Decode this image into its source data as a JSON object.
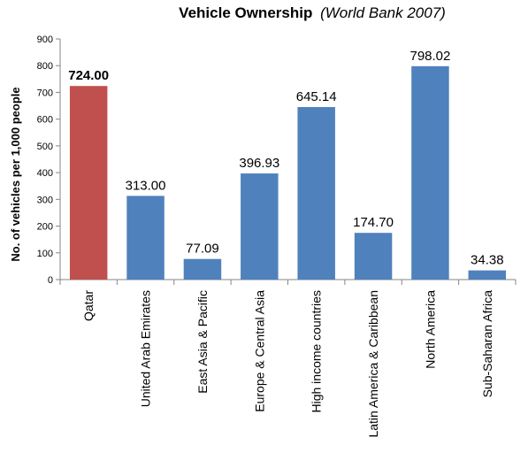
{
  "chart_data": {
    "type": "bar",
    "title": "Vehicle Ownership",
    "subtitle": "(World Bank 2007)",
    "xlabel": "",
    "ylabel": "No. of vehicles per 1,000 people",
    "ylim": [
      0,
      900
    ],
    "yticks": [
      0,
      100,
      200,
      300,
      400,
      500,
      600,
      700,
      800,
      900
    ],
    "grid": false,
    "legend": "none",
    "categories": [
      "Qatar",
      "United Arab Emirates",
      "East Asia & Pacific",
      "Europe & Central Asia",
      "High income countries",
      "Latin America & Caribbean",
      "North America",
      "Sub-Saharan Africa"
    ],
    "values": [
      724.0,
      313.0,
      77.09,
      396.93,
      645.14,
      174.7,
      798.02,
      34.38
    ],
    "data_labels": [
      "724.00",
      "313.00",
      "77.09",
      "396.93",
      "645.14",
      "174.70",
      "798.02",
      "34.38"
    ],
    "highlight_index": 0,
    "colors": {
      "bar": "#4F81BD",
      "highlight": "#C0504D",
      "axis": "#868686"
    }
  }
}
